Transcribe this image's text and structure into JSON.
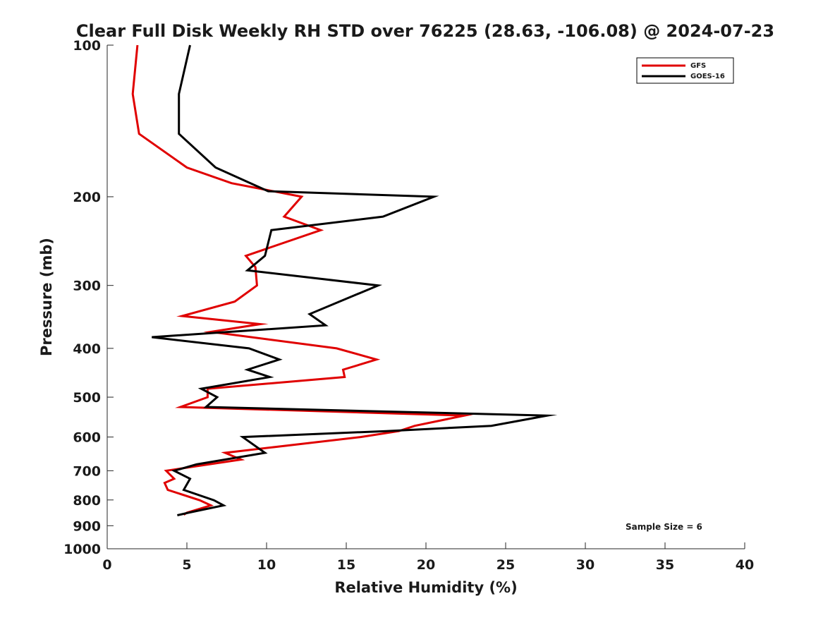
{
  "chart_data": {
    "type": "line",
    "title": "Clear Full Disk Weekly RH STD over 76225 (28.63, -106.08) @ 2024-07-23",
    "xlabel": "Relative Humidity (%)",
    "ylabel": "Pressure (mb)",
    "xlim": [
      0,
      40
    ],
    "ylim": [
      100,
      1000
    ],
    "yscale": "log",
    "y_reversed": true,
    "x_ticks": [
      0,
      5,
      10,
      15,
      20,
      25,
      30,
      35,
      40
    ],
    "y_ticks": [
      100,
      200,
      300,
      400,
      500,
      600,
      700,
      800,
      900,
      1000
    ],
    "grid": false,
    "legend_position": "top-right",
    "annotation": "Sample Size = 6",
    "series": [
      {
        "name": "GFS",
        "color": "#e00000",
        "points": [
          [
            1.9,
            100
          ],
          [
            1.6,
            125
          ],
          [
            2.0,
            150
          ],
          [
            5.0,
            175
          ],
          [
            7.8,
            188
          ],
          [
            12.2,
            200
          ],
          [
            11.1,
            219
          ],
          [
            13.4,
            233
          ],
          [
            8.7,
            262
          ],
          [
            9.3,
            276
          ],
          [
            9.4,
            300
          ],
          [
            8.0,
            323
          ],
          [
            4.7,
            345
          ],
          [
            9.6,
            358
          ],
          [
            6.5,
            371
          ],
          [
            14.4,
            400
          ],
          [
            16.9,
            421
          ],
          [
            14.8,
            441
          ],
          [
            14.9,
            456
          ],
          [
            6.3,
            481
          ],
          [
            6.3,
            500
          ],
          [
            4.6,
            523
          ],
          [
            22.4,
            544
          ],
          [
            19.3,
            570
          ],
          [
            18.3,
            584
          ],
          [
            15.9,
            600
          ],
          [
            7.4,
            645
          ],
          [
            8.4,
            665
          ],
          [
            3.7,
            700
          ],
          [
            4.2,
            726
          ],
          [
            3.6,
            740
          ],
          [
            3.8,
            764
          ],
          [
            5.8,
            801
          ],
          [
            6.5,
            820
          ],
          [
            5.0,
            848
          ],
          [
            4.8,
            856
          ]
        ]
      },
      {
        "name": "GOES-16",
        "color": "#000000",
        "points": [
          [
            5.2,
            100
          ],
          [
            4.5,
            125
          ],
          [
            4.5,
            150
          ],
          [
            6.8,
            175
          ],
          [
            10.1,
            195
          ],
          [
            20.5,
            200
          ],
          [
            17.3,
            219
          ],
          [
            10.3,
            233
          ],
          [
            9.9,
            262
          ],
          [
            8.8,
            280
          ],
          [
            17.0,
            300
          ],
          [
            12.7,
            342
          ],
          [
            13.7,
            360
          ],
          [
            2.8,
            380
          ],
          [
            8.9,
            400
          ],
          [
            10.8,
            421
          ],
          [
            8.8,
            441
          ],
          [
            10.2,
            456
          ],
          [
            5.9,
            481
          ],
          [
            6.9,
            500
          ],
          [
            6.2,
            523
          ],
          [
            27.6,
            544
          ],
          [
            24.1,
            570
          ],
          [
            17.5,
            584
          ],
          [
            8.5,
            600
          ],
          [
            9.9,
            645
          ],
          [
            5.6,
            680
          ],
          [
            4.2,
            700
          ],
          [
            5.2,
            726
          ],
          [
            4.8,
            764
          ],
          [
            6.7,
            801
          ],
          [
            7.3,
            820
          ],
          [
            5.1,
            848
          ],
          [
            4.4,
            858
          ]
        ]
      }
    ]
  }
}
